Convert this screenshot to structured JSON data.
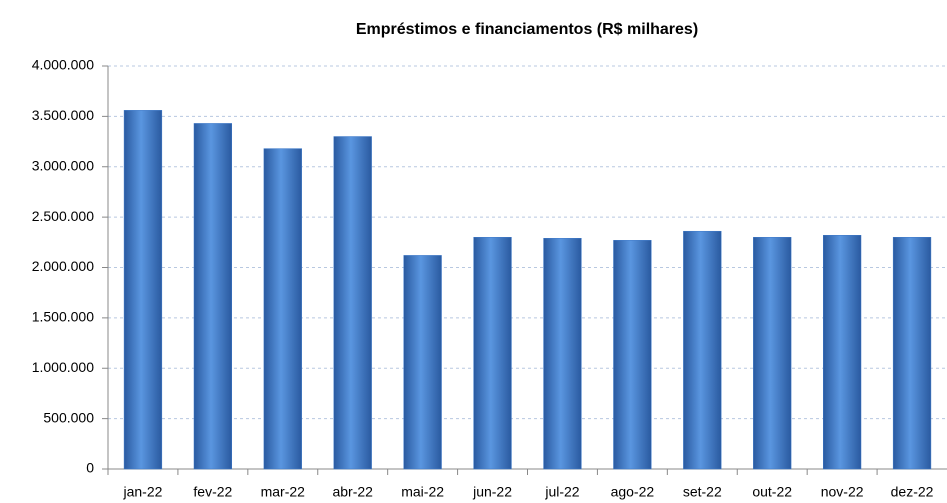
{
  "chart_data": {
    "type": "bar",
    "title": "Empréstimos e financiamentos (R$ milhares)",
    "categories": [
      "jan-22",
      "fev-22",
      "mar-22",
      "abr-22",
      "mai-22",
      "jun-22",
      "jul-22",
      "ago-22",
      "set-22",
      "out-22",
      "nov-22",
      "dez-22"
    ],
    "values": [
      3560000,
      3430000,
      3180000,
      3300000,
      2120000,
      2300000,
      2290000,
      2270000,
      2360000,
      2300000,
      2320000,
      2300000
    ],
    "color": "#3c78c8",
    "ylim": [
      0,
      4000000
    ],
    "yticks": [
      0,
      {
        "value": 500000,
        "label": "500.000"
      },
      {
        "value": 1000000,
        "label": "1.000.000"
      },
      {
        "value": 1500000,
        "label": "1.500.000"
      },
      {
        "value": 2000000,
        "label": "2.000.000"
      },
      {
        "value": 2500000,
        "label": "2.500.000"
      },
      {
        "value": 3000000,
        "label": "3.000.000"
      },
      {
        "value": 3500000,
        "label": "3.500.000"
      },
      {
        "value": 4000000,
        "label": "4.000.000"
      }
    ],
    "grid": true
  }
}
